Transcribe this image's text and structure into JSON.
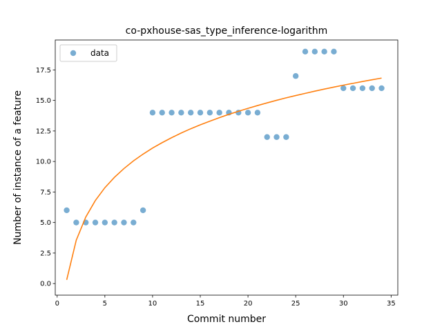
{
  "chart_data": {
    "type": "scatter",
    "title": "co-pxhouse-sas_type_inference-logarithm",
    "xlabel": "Commit number",
    "ylabel": "Number of instance of a feature",
    "xlim": [
      -0.2,
      35.7
    ],
    "ylim": [
      -0.95,
      19.95
    ],
    "x_ticks": [
      0,
      5,
      10,
      15,
      20,
      25,
      30,
      35
    ],
    "x_tick_labels": [
      "0",
      "5",
      "10",
      "15",
      "20",
      "25",
      "30",
      "35"
    ],
    "y_ticks": [
      0,
      2.5,
      5,
      7.5,
      10,
      12.5,
      15,
      17.5
    ],
    "y_tick_labels": [
      "0.0",
      "2.5",
      "5.0",
      "7.5",
      "10.0",
      "12.5",
      "15.0",
      "17.5"
    ],
    "grid": false,
    "legend": {
      "placement": "upper-left",
      "entries": [
        "data"
      ]
    },
    "series": [
      {
        "name": "data",
        "kind": "scatter",
        "color": "#1f77b4",
        "x": [
          1,
          2,
          3,
          4,
          5,
          6,
          7,
          8,
          9,
          10,
          11,
          12,
          13,
          14,
          15,
          16,
          17,
          18,
          19,
          20,
          21,
          22,
          23,
          24,
          25,
          26,
          27,
          28,
          29,
          30,
          31,
          32,
          33,
          34
        ],
        "y": [
          6,
          5,
          5,
          5,
          5,
          5,
          5,
          5,
          6,
          14,
          14,
          14,
          14,
          14,
          14,
          14,
          14,
          14,
          14,
          14,
          14,
          12,
          12,
          12,
          17,
          19,
          19,
          19,
          19,
          16,
          16,
          16,
          16,
          16
        ]
      },
      {
        "kind": "line",
        "color": "#ff7f0e",
        "x": [
          1,
          2,
          3,
          4,
          5,
          6,
          7,
          8,
          9,
          10,
          11,
          12,
          13,
          14,
          15,
          16,
          17,
          18,
          19,
          20,
          21,
          22,
          23,
          24,
          25,
          26,
          27,
          28,
          29,
          30,
          31,
          32,
          33,
          34
        ],
        "y": [
          0.3,
          3.55,
          5.45,
          6.8,
          7.85,
          8.7,
          9.42,
          10.05,
          10.6,
          11.1,
          11.54,
          11.95,
          12.33,
          12.68,
          13.0,
          13.3,
          13.59,
          13.86,
          14.11,
          14.35,
          14.58,
          14.8,
          15.01,
          15.21,
          15.4,
          15.58,
          15.76,
          15.93,
          16.09,
          16.25,
          16.4,
          16.55,
          16.69,
          16.83
        ]
      }
    ]
  }
}
